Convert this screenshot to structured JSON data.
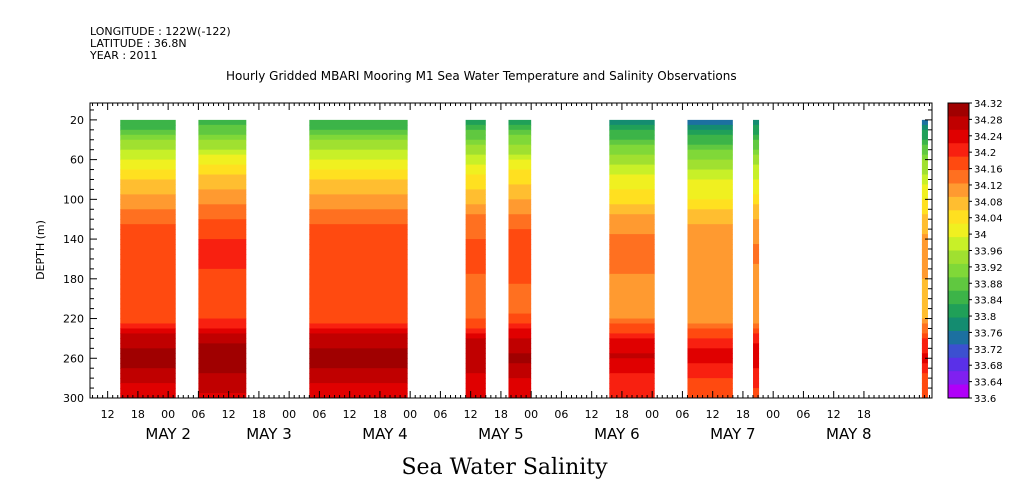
{
  "header": {
    "longitude": "LONGITUDE : 122W(-122)",
    "latitude": "LATITUDE : 36.8N",
    "year": "YEAR : 2011",
    "title": "Hourly Gridded MBARI Mooring M1 Sea Water Temperature and Salinity Observations"
  },
  "x_title": "Sea Water Salinity",
  "chart_data": {
    "type": "heatmap",
    "title": "Hourly Gridded MBARI Mooring M1 Sea Water Temperature and Salinity Observations",
    "xlabel": "Sea Water Salinity",
    "ylabel": "DEPTH (m)",
    "x_units": "hours since 2011-05-01 12:00 (time axis)",
    "xlim": [
      -3.5,
      163.5
    ],
    "ylim": [
      300,
      3
    ],
    "y_ticks": [
      20,
      60,
      100,
      140,
      180,
      220,
      260,
      300
    ],
    "x_tick_labels": [
      "12",
      "18",
      "00",
      "06",
      "12",
      "18",
      "00",
      "06",
      "12",
      "18",
      "00",
      "06",
      "12",
      "18",
      "00",
      "06",
      "12",
      "18",
      "00",
      "06",
      "12",
      "18",
      "00",
      "06",
      "12",
      "18"
    ],
    "x_tick_hours": [
      0,
      6,
      12,
      18,
      24,
      30,
      36,
      42,
      48,
      54,
      60,
      66,
      72,
      78,
      84,
      90,
      96,
      102,
      108,
      114,
      120,
      126,
      132,
      138,
      144,
      150
    ],
    "day_labels": [
      {
        "label": "MAY  2",
        "hour": 12
      },
      {
        "label": "MAY  3",
        "hour": 32
      },
      {
        "label": "MAY  4",
        "hour": 55
      },
      {
        "label": "MAY  5",
        "hour": 78
      },
      {
        "label": "MAY  6",
        "hour": 101
      },
      {
        "label": "MAY  7",
        "hour": 124
      },
      {
        "label": "MAY  8",
        "hour": 147
      }
    ],
    "colorbar": {
      "levels": [
        "34.32",
        "34.28",
        "34.24",
        "34.2",
        "34.16",
        "34.12",
        "34.08",
        "34.04",
        "34",
        "33.96",
        "33.92",
        "33.88",
        "33.84",
        "33.8",
        "33.76",
        "33.72",
        "33.68",
        "33.64",
        "33.6"
      ],
      "colors": [
        "#a00000",
        "#c00000",
        "#e00000",
        "#f82010",
        "#ff4a10",
        "#ff7020",
        "#ff9a30",
        "#ffbe30",
        "#ffe020",
        "#f0f020",
        "#c8f028",
        "#a0e030",
        "#80d838",
        "#60c840",
        "#3cb448",
        "#20a058",
        "#148c70",
        "#1c70a0",
        "#3c50d0",
        "#5a30e8",
        "#8020f0",
        "#b000f8"
      ]
    },
    "depth_profile": [
      {
        "depth": 20,
        "salinity": 33.82
      },
      {
        "depth": 40,
        "salinity": 33.92
      },
      {
        "depth": 60,
        "salinity": 34.0
      },
      {
        "depth": 80,
        "salinity": 34.06
      },
      {
        "depth": 100,
        "salinity": 34.1
      },
      {
        "depth": 120,
        "salinity": 34.15
      },
      {
        "depth": 140,
        "salinity": 34.18
      },
      {
        "depth": 160,
        "salinity": 34.19
      },
      {
        "depth": 180,
        "salinity": 34.17
      },
      {
        "depth": 200,
        "salinity": 34.16
      },
      {
        "depth": 220,
        "salinity": 34.17
      },
      {
        "depth": 240,
        "salinity": 34.27
      },
      {
        "depth": 260,
        "salinity": 34.31
      },
      {
        "depth": 280,
        "salinity": 34.26
      },
      {
        "depth": 300,
        "salinity": 34.24
      }
    ],
    "segments": [
      {
        "start": 2.5,
        "end": 13.5,
        "shift": 0
      },
      {
        "start": 18,
        "end": 27.5,
        "shift": 0.01
      },
      {
        "start": 40,
        "end": 59.5,
        "shift": 0
      },
      {
        "start": 71,
        "end": 75,
        "shift": -0.02
      },
      {
        "start": 79.5,
        "end": 84,
        "shift": -0.01
      },
      {
        "start": 99.5,
        "end": 108.5,
        "shift": -0.05
      },
      {
        "start": 115,
        "end": 124,
        "shift": -0.07
      },
      {
        "start": 128,
        "end": 129.2,
        "shift": -0.06
      },
      {
        "start": 161.5,
        "end": 162.7,
        "shift": -0.08
      }
    ]
  }
}
